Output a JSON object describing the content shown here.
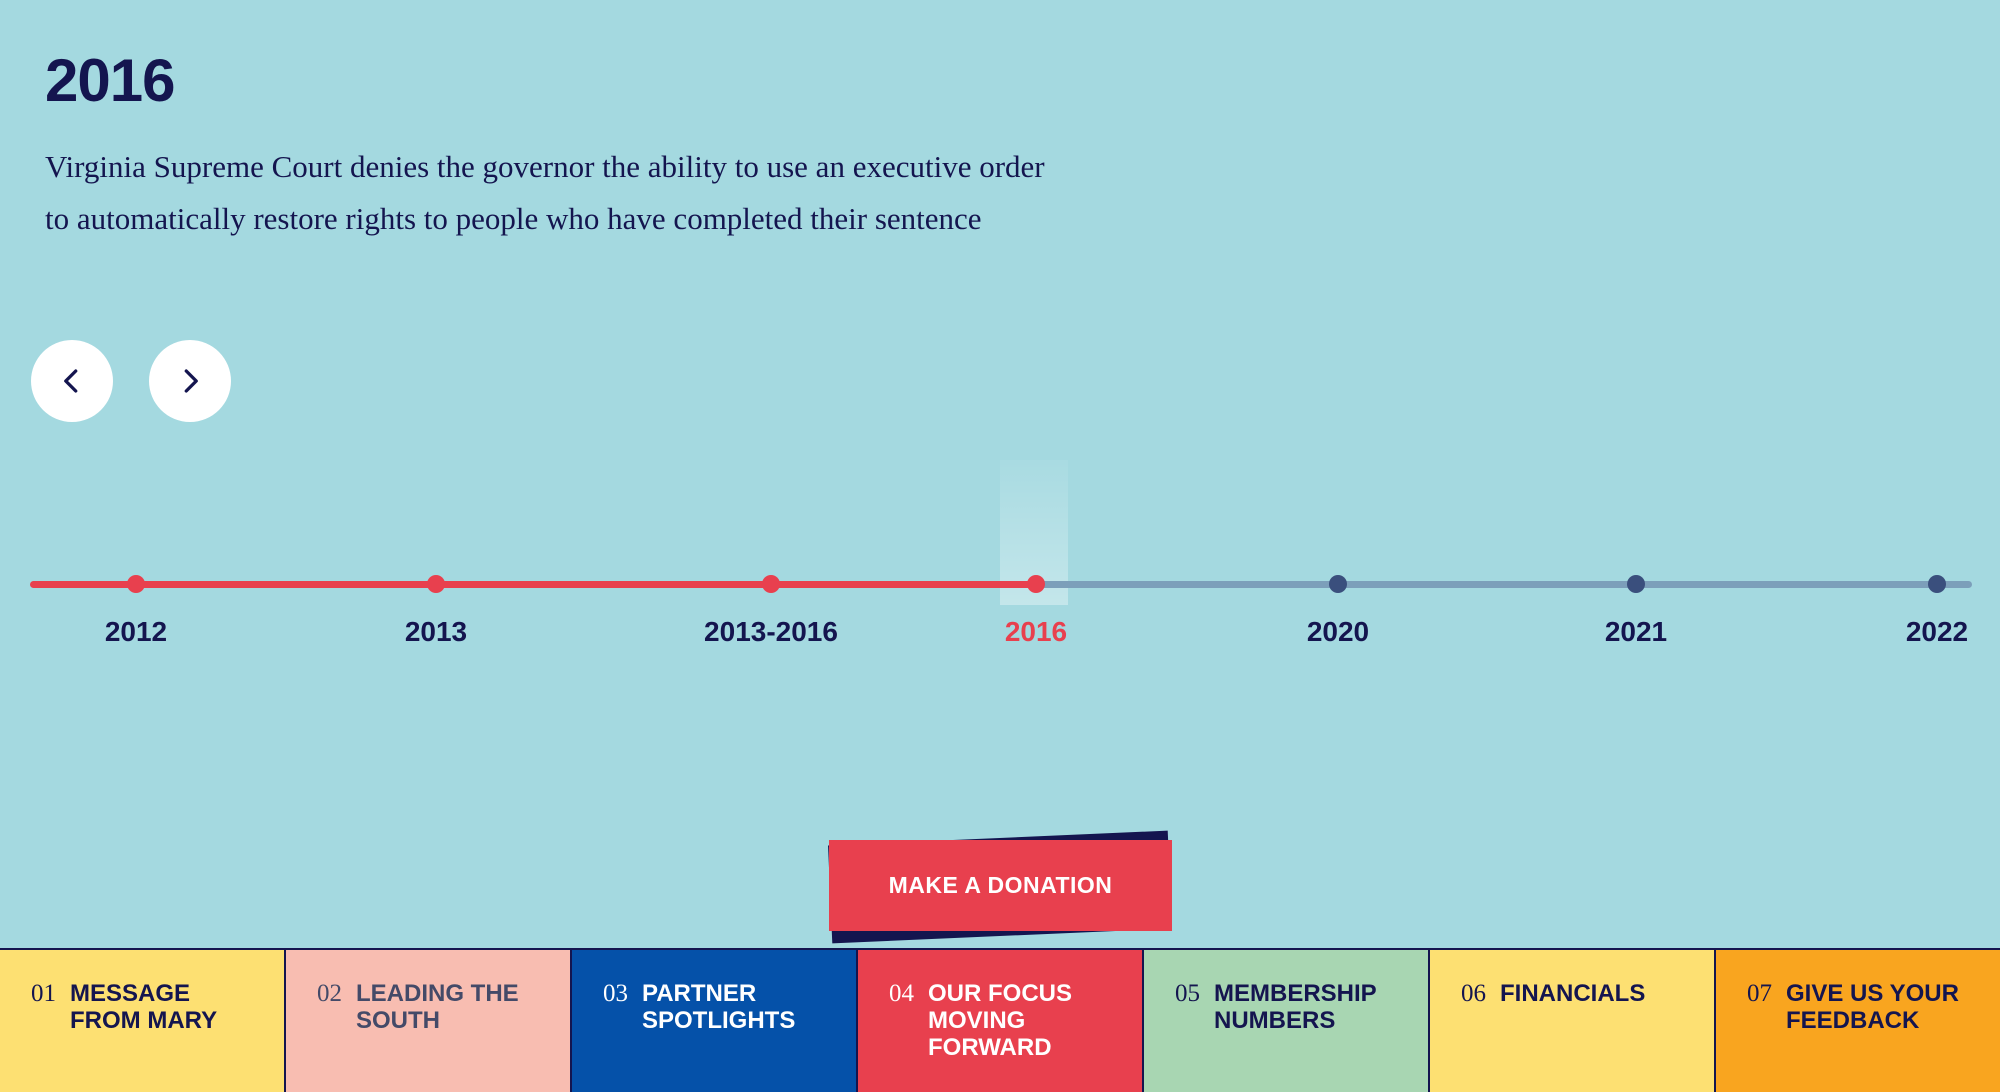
{
  "event": {
    "year": "2016",
    "description": "Virginia Supreme Court denies the governor the ability to use an executive order to automatically restore rights to people who have completed their sentence"
  },
  "nav_buttons": {
    "prev_icon": "chevron-left-icon",
    "next_icon": "chevron-right-icon"
  },
  "timeline": {
    "active_year": "2016",
    "items": [
      {
        "label": "2012",
        "state": "past"
      },
      {
        "label": "2013",
        "state": "past"
      },
      {
        "label": "2013-2016",
        "state": "past"
      },
      {
        "label": "2016",
        "state": "active"
      },
      {
        "label": "2020",
        "state": "future"
      },
      {
        "label": "2021",
        "state": "future"
      },
      {
        "label": "2022",
        "state": "future"
      }
    ]
  },
  "donate": {
    "label": "MAKE A DONATION"
  },
  "sections": [
    {
      "num": "01",
      "label": "MESSAGE FROM MARY",
      "bg": "#fde072",
      "fg": "#14154f"
    },
    {
      "num": "02",
      "label": "LEADING THE SOUTH",
      "bg": "#f8bdb1",
      "fg": "#444a68"
    },
    {
      "num": "03",
      "label": "PARTNER SPOTLIGHTS",
      "bg": "#0551a9",
      "fg": "#ffffff"
    },
    {
      "num": "04",
      "label": "OUR FOCUS MOVING FORWARD",
      "bg": "#e8404e",
      "fg": "#ffffff"
    },
    {
      "num": "05",
      "label": "MEMBERSHIP NUMBERS",
      "bg": "#a8d6b2",
      "fg": "#14154f"
    },
    {
      "num": "06",
      "label": "FINANCIALS",
      "bg": "#fde072",
      "fg": "#14154f"
    },
    {
      "num": "07",
      "label": "GIVE US YOUR FEEDBACK",
      "bg": "#f9a51f",
      "fg": "#14154f"
    }
  ],
  "colors": {
    "background": "#a4d9e0",
    "navy": "#14154f",
    "red": "#e8404e",
    "future_track": "#7c9fba",
    "future_dot": "#3a4f7d"
  }
}
